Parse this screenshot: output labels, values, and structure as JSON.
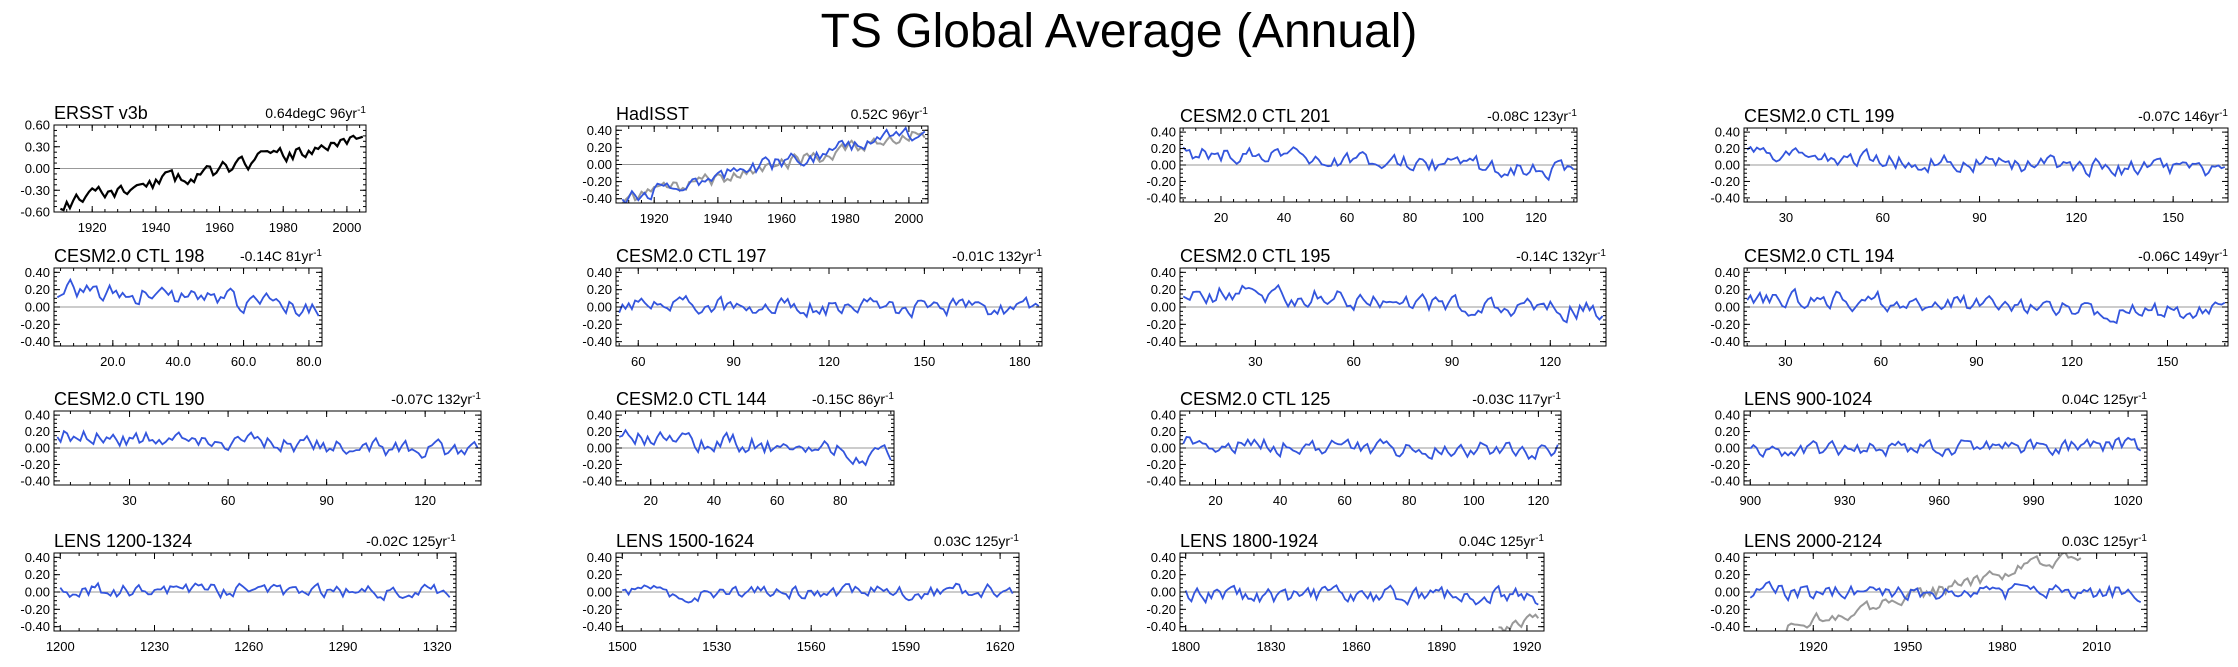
{
  "figure": {
    "title": "TS Global Average (Annual)",
    "colors": {
      "model": "#3355dd",
      "obs": "#000000",
      "ref": "#999999",
      "zero": "#999999"
    }
  },
  "chart_data": [
    {
      "type": "line",
      "title": "ERSST v3b",
      "trend_value": "0.64degC",
      "trend_years": "96",
      "trend_unit": "yr",
      "xlim": [
        1908,
        2006
      ],
      "ylim": [
        -0.6,
        0.6
      ],
      "yticks": [
        0.6,
        0.3,
        0.0,
        -0.3,
        -0.6
      ],
      "ytick_labels": [
        "0.60",
        "0.30",
        "0.00",
        "-0.30",
        "-0.60"
      ],
      "xticks": [
        1920,
        1940,
        1960,
        1980,
        2000
      ],
      "xtick_labels": [
        "1920",
        "1940",
        "1960",
        "1980",
        "2000"
      ],
      "series": [
        {
          "name": "ERSST v3b",
          "style": "obs",
          "x": [
            1910,
            2005
          ],
          "shape": {
            "seed": 11,
            "start": -0.5,
            "end": 0.42,
            "noise": 0.09
          }
        }
      ]
    },
    {
      "type": "line",
      "title": "HadISST",
      "trend_value": "0.52C",
      "trend_years": "96",
      "trend_unit": "yr",
      "xlim": [
        1908,
        2006
      ],
      "ylim": [
        -0.45,
        0.45
      ],
      "yticks": [
        0.4,
        0.2,
        0.0,
        -0.2,
        -0.4
      ],
      "ytick_labels": [
        "0.40",
        "0.20",
        "0.00",
        "-0.20",
        "-0.40"
      ],
      "xticks": [
        1920,
        1940,
        1960,
        1980,
        2000
      ],
      "xtick_labels": [
        "1920",
        "1940",
        "1960",
        "1980",
        "2000"
      ],
      "series": [
        {
          "name": "reference",
          "style": "ref",
          "x": [
            1910,
            2005
          ],
          "shape": {
            "seed": 12,
            "start": -0.42,
            "end": 0.38,
            "noise": 0.07
          }
        },
        {
          "name": "HadISST",
          "style": "model",
          "x": [
            1910,
            2005
          ],
          "shape": {
            "seed": 13,
            "start": -0.38,
            "end": 0.4,
            "noise": 0.08
          }
        }
      ]
    },
    {
      "type": "line",
      "title": "CESM2.0 CTL 201",
      "trend_value": "-0.08C",
      "trend_years": "123",
      "trend_unit": "yr",
      "xlim": [
        7,
        133
      ],
      "ylim": [
        -0.45,
        0.45
      ],
      "yticks": [
        0.4,
        0.2,
        0.0,
        -0.2,
        -0.4
      ],
      "ytick_labels": [
        "0.40",
        "0.20",
        "0.00",
        "-0.20",
        "-0.40"
      ],
      "xticks": [
        20,
        40,
        60,
        80,
        100,
        120
      ],
      "xtick_labels": [
        "20",
        "40",
        "60",
        "80",
        "100",
        "120"
      ],
      "series": [
        {
          "name": "CESM2.0 CTL 201",
          "style": "model",
          "x": [
            8,
            132
          ],
          "shape": {
            "seed": 21,
            "start": 0.14,
            "end": -0.06,
            "noise": 0.09
          }
        }
      ]
    },
    {
      "type": "line",
      "title": "CESM2.0 CTL 199",
      "trend_value": "-0.07C",
      "trend_years": "146",
      "trend_unit": "yr",
      "xlim": [
        17,
        167
      ],
      "ylim": [
        -0.45,
        0.45
      ],
      "yticks": [
        0.4,
        0.2,
        0.0,
        -0.2,
        -0.4
      ],
      "ytick_labels": [
        "0.40",
        "0.20",
        "0.00",
        "-0.20",
        "-0.40"
      ],
      "xticks": [
        30,
        60,
        90,
        120,
        150
      ],
      "xtick_labels": [
        "30",
        "60",
        "90",
        "120",
        "150"
      ],
      "series": [
        {
          "name": "CESM2.0 CTL 199",
          "style": "model",
          "x": [
            18,
            166
          ],
          "shape": {
            "seed": 22,
            "start": 0.1,
            "end": -0.07,
            "noise": 0.09
          }
        }
      ]
    },
    {
      "type": "line",
      "title": "CESM2.0 CTL 198",
      "trend_value": "-0.14C",
      "trend_years": "81",
      "trend_unit": "yr",
      "xlim": [
        2,
        84
      ],
      "ylim": [
        -0.45,
        0.45
      ],
      "yticks": [
        0.4,
        0.2,
        0.0,
        -0.2,
        -0.4
      ],
      "ytick_labels": [
        "0.40",
        "0.20",
        "0.00",
        "-0.20",
        "-0.40"
      ],
      "xticks": [
        20,
        40,
        60,
        80
      ],
      "xtick_labels": [
        "20.0",
        "40.0",
        "60.0",
        "80.0"
      ],
      "series": [
        {
          "name": "CESM2.0 CTL 198",
          "style": "model",
          "x": [
            3,
            83
          ],
          "shape": {
            "seed": 23,
            "start": 0.2,
            "end": 0.0,
            "noise": 0.1
          }
        }
      ]
    },
    {
      "type": "line",
      "title": "CESM2.0 CTL 197",
      "trend_value": "-0.01C",
      "trend_years": "132",
      "trend_unit": "yr",
      "xlim": [
        53,
        187
      ],
      "ylim": [
        -0.45,
        0.45
      ],
      "yticks": [
        0.4,
        0.2,
        0.0,
        -0.2,
        -0.4
      ],
      "ytick_labels": [
        "0.40",
        "0.20",
        "0.00",
        "-0.20",
        "-0.40"
      ],
      "xticks": [
        60,
        90,
        120,
        150,
        180
      ],
      "xtick_labels": [
        "60",
        "90",
        "120",
        "150",
        "180"
      ],
      "series": [
        {
          "name": "CESM2.0 CTL 197",
          "style": "model",
          "x": [
            54,
            186
          ],
          "shape": {
            "seed": 24,
            "start": 0.0,
            "end": 0.0,
            "noise": 0.09
          }
        }
      ]
    },
    {
      "type": "line",
      "title": "CESM2.0 CTL 195",
      "trend_value": "-0.14C",
      "trend_years": "132",
      "trend_unit": "yr",
      "xlim": [
        7,
        137
      ],
      "ylim": [
        -0.45,
        0.45
      ],
      "yticks": [
        0.4,
        0.2,
        0.0,
        -0.2,
        -0.4
      ],
      "ytick_labels": [
        "0.40",
        "0.20",
        "0.00",
        "-0.20",
        "-0.40"
      ],
      "xticks": [
        30,
        60,
        90,
        120
      ],
      "xtick_labels": [
        "30",
        "60",
        "90",
        "120"
      ],
      "series": [
        {
          "name": "CESM2.0 CTL 195",
          "style": "model",
          "x": [
            8,
            136
          ],
          "shape": {
            "seed": 25,
            "start": 0.18,
            "end": -0.05,
            "noise": 0.1
          }
        }
      ]
    },
    {
      "type": "line",
      "title": "CESM2.0 CTL 194",
      "trend_value": "-0.06C",
      "trend_years": "149",
      "trend_unit": "yr",
      "xlim": [
        17,
        169
      ],
      "ylim": [
        -0.45,
        0.45
      ],
      "yticks": [
        0.4,
        0.2,
        0.0,
        -0.2,
        -0.4
      ],
      "ytick_labels": [
        "0.40",
        "0.20",
        "0.00",
        "-0.20",
        "-0.40"
      ],
      "xticks": [
        30,
        60,
        90,
        120,
        150
      ],
      "xtick_labels": [
        "30",
        "60",
        "90",
        "120",
        "150"
      ],
      "series": [
        {
          "name": "CESM2.0 CTL 194",
          "style": "model",
          "x": [
            18,
            168
          ],
          "shape": {
            "seed": 26,
            "start": 0.12,
            "end": -0.08,
            "noise": 0.09
          }
        }
      ]
    },
    {
      "type": "line",
      "title": "CESM2.0 CTL 190",
      "trend_value": "-0.07C",
      "trend_years": "132",
      "trend_unit": "yr",
      "xlim": [
        7,
        137
      ],
      "ylim": [
        -0.45,
        0.45
      ],
      "yticks": [
        0.4,
        0.2,
        0.0,
        -0.2,
        -0.4
      ],
      "ytick_labels": [
        "0.40",
        "0.20",
        "0.00",
        "-0.20",
        "-0.40"
      ],
      "xticks": [
        30,
        60,
        90,
        120
      ],
      "xtick_labels": [
        "30",
        "60",
        "90",
        "120"
      ],
      "series": [
        {
          "name": "CESM2.0 CTL 190",
          "style": "model",
          "x": [
            8,
            136
          ],
          "shape": {
            "seed": 27,
            "start": 0.16,
            "end": -0.05,
            "noise": 0.09
          }
        }
      ]
    },
    {
      "type": "line",
      "title": "CESM2.0 CTL 144",
      "trend_value": "-0.15C",
      "trend_years": "86",
      "trend_unit": "yr",
      "xlim": [
        9,
        97
      ],
      "ylim": [
        -0.45,
        0.45
      ],
      "yticks": [
        0.4,
        0.2,
        0.0,
        -0.2,
        -0.4
      ],
      "ytick_labels": [
        "0.40",
        "0.20",
        "0.00",
        "-0.20",
        "-0.40"
      ],
      "xticks": [
        20,
        40,
        60,
        80
      ],
      "xtick_labels": [
        "20",
        "40",
        "60",
        "80"
      ],
      "series": [
        {
          "name": "CESM2.0 CTL 144",
          "style": "model",
          "x": [
            10,
            96
          ],
          "shape": {
            "seed": 28,
            "start": 0.15,
            "end": -0.08,
            "noise": 0.1
          }
        }
      ]
    },
    {
      "type": "line",
      "title": "CESM2.0 CTL 125",
      "trend_value": "-0.03C",
      "trend_years": "117",
      "trend_unit": "yr",
      "xlim": [
        9,
        127
      ],
      "ylim": [
        -0.45,
        0.45
      ],
      "yticks": [
        0.4,
        0.2,
        0.0,
        -0.2,
        -0.4
      ],
      "ytick_labels": [
        "0.40",
        "0.20",
        "0.00",
        "-0.20",
        "-0.40"
      ],
      "xticks": [
        20,
        40,
        60,
        80,
        100,
        120
      ],
      "xtick_labels": [
        "20",
        "40",
        "60",
        "80",
        "100",
        "120"
      ],
      "series": [
        {
          "name": "CESM2.0 CTL 125",
          "style": "model",
          "x": [
            10,
            126
          ],
          "shape": {
            "seed": 29,
            "start": 0.05,
            "end": -0.04,
            "noise": 0.09
          }
        }
      ]
    },
    {
      "type": "line",
      "title": "LENS 900-1024",
      "trend_value": "0.04C",
      "trend_years": "125",
      "trend_unit": "yr",
      "xlim": [
        898,
        1026
      ],
      "ylim": [
        -0.45,
        0.45
      ],
      "yticks": [
        0.4,
        0.2,
        0.0,
        -0.2,
        -0.4
      ],
      "ytick_labels": [
        "0.40",
        "0.20",
        "0.00",
        "-0.20",
        "-0.40"
      ],
      "xticks": [
        900,
        930,
        960,
        990,
        1020
      ],
      "xtick_labels": [
        "900",
        "930",
        "960",
        "990",
        "1020"
      ],
      "series": [
        {
          "name": "LENS 900-1024",
          "style": "model",
          "x": [
            900,
            1024
          ],
          "shape": {
            "seed": 31,
            "start": -0.03,
            "end": 0.04,
            "noise": 0.08
          }
        }
      ]
    },
    {
      "type": "line",
      "title": "LENS 1200-1324",
      "trend_value": "-0.02C",
      "trend_years": "125",
      "trend_unit": "yr",
      "xlim": [
        1198,
        1326
      ],
      "ylim": [
        -0.45,
        0.45
      ],
      "yticks": [
        0.4,
        0.2,
        0.0,
        -0.2,
        -0.4
      ],
      "ytick_labels": [
        "0.40",
        "0.20",
        "0.00",
        "-0.20",
        "-0.40"
      ],
      "xticks": [
        1200,
        1230,
        1260,
        1290,
        1320
      ],
      "xtick_labels": [
        "1200",
        "1230",
        "1260",
        "1290",
        "1320"
      ],
      "series": [
        {
          "name": "LENS 1200-1324",
          "style": "model",
          "x": [
            1200,
            1324
          ],
          "shape": {
            "seed": 32,
            "start": 0.02,
            "end": -0.01,
            "noise": 0.07
          }
        }
      ]
    },
    {
      "type": "line",
      "title": "LENS 1500-1624",
      "trend_value": "0.03C",
      "trend_years": "125",
      "trend_unit": "yr",
      "xlim": [
        1498,
        1626
      ],
      "ylim": [
        -0.45,
        0.45
      ],
      "yticks": [
        0.4,
        0.2,
        0.0,
        -0.2,
        -0.4
      ],
      "ytick_labels": [
        "0.40",
        "0.20",
        "0.00",
        "-0.20",
        "-0.40"
      ],
      "xticks": [
        1500,
        1530,
        1560,
        1590,
        1620
      ],
      "xtick_labels": [
        "1500",
        "1530",
        "1560",
        "1590",
        "1620"
      ],
      "series": [
        {
          "name": "LENS 1500-1624",
          "style": "model",
          "x": [
            1500,
            1624
          ],
          "shape": {
            "seed": 33,
            "start": -0.02,
            "end": 0.02,
            "noise": 0.07
          }
        }
      ]
    },
    {
      "type": "line",
      "title": "LENS 1800-1924",
      "trend_value": "0.04C",
      "trend_years": "125",
      "trend_unit": "yr",
      "xlim": [
        1798,
        1926
      ],
      "ylim": [
        -0.45,
        0.45
      ],
      "yticks": [
        0.4,
        0.2,
        0.0,
        -0.2,
        -0.4
      ],
      "ytick_labels": [
        "0.40",
        "0.20",
        "0.00",
        "-0.20",
        "-0.40"
      ],
      "xticks": [
        1800,
        1830,
        1860,
        1890,
        1920
      ],
      "xtick_labels": [
        "1800",
        "1830",
        "1860",
        "1890",
        "1920"
      ],
      "series": [
        {
          "name": "LENS 1800-1924",
          "style": "model",
          "x": [
            1800,
            1924
          ],
          "shape": {
            "seed": 34,
            "start": -0.04,
            "end": -0.05,
            "noise": 0.08
          }
        },
        {
          "name": "reference",
          "style": "ref",
          "x": [
            1910,
            1924
          ],
          "shape": {
            "seed": 35,
            "start": -0.45,
            "end": -0.28,
            "noise": 0.05
          }
        }
      ]
    },
    {
      "type": "line",
      "title": "LENS 2000-2124",
      "trend_value": "0.03C",
      "trend_years": "125",
      "trend_unit": "yr",
      "xlim": [
        1898,
        2026
      ],
      "ylim": [
        -0.45,
        0.45
      ],
      "yticks": [
        0.4,
        0.2,
        0.0,
        -0.2,
        -0.4
      ],
      "ytick_labels": [
        "0.40",
        "0.20",
        "0.00",
        "-0.20",
        "-0.40"
      ],
      "xticks": [
        1920,
        1950,
        1980,
        2010
      ],
      "xtick_labels": [
        "1920",
        "1950",
        "1980",
        "2010"
      ],
      "series": [
        {
          "name": "reference",
          "style": "ref",
          "x": [
            1910,
            2005
          ],
          "shape": {
            "seed": 36,
            "start": -0.42,
            "end": 0.42,
            "noise": 0.07
          }
        },
        {
          "name": "LENS 2000-2124",
          "style": "model",
          "x": [
            1900,
            2024
          ],
          "shape": {
            "seed": 37,
            "start": 0.0,
            "end": 0.0,
            "noise": 0.08
          }
        }
      ]
    }
  ]
}
